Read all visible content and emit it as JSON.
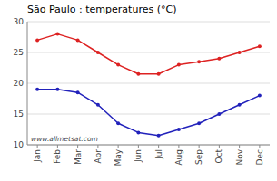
{
  "chart_data": {
    "type": "line",
    "title": "São Paulo : temperatures (°C)",
    "categories": [
      "Jan",
      "Feb",
      "Mar",
      "Apr",
      "May",
      "Jun",
      "Jul",
      "Aug",
      "Sep",
      "Oct",
      "Nov",
      "Dec"
    ],
    "series": [
      {
        "color": "#dd2222",
        "values": [
          27,
          28,
          27,
          25,
          23,
          21.5,
          21.5,
          23,
          23.5,
          24,
          25,
          26
        ]
      },
      {
        "color": "#2222bb",
        "values": [
          19,
          19,
          18.5,
          16.5,
          13.5,
          12,
          11.5,
          12.5,
          13.5,
          15,
          16.5,
          18
        ]
      }
    ],
    "ylim": [
      10,
      30
    ],
    "yticks": [
      10,
      15,
      20,
      25,
      30
    ],
    "grid": true,
    "marker": "circle",
    "annotations": [
      "www.allmetsat.com"
    ]
  }
}
